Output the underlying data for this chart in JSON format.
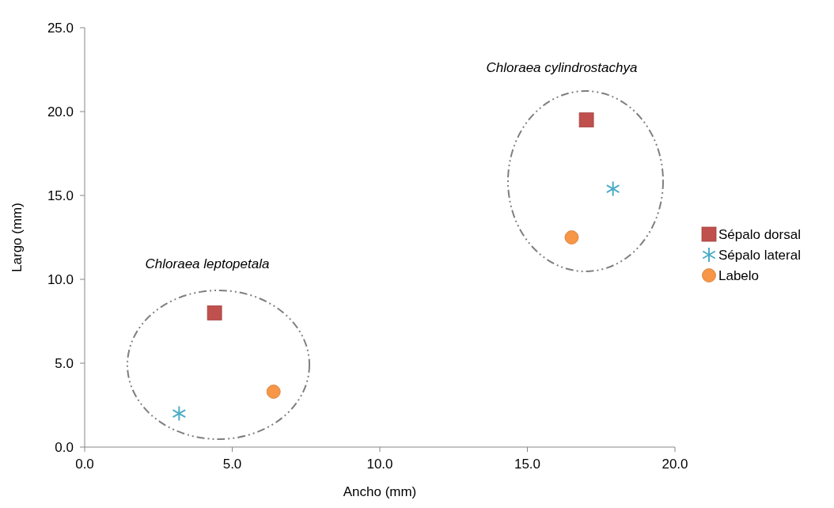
{
  "chart_data": {
    "type": "scatter",
    "xlabel": "Ancho (mm)",
    "ylabel": "Largo (mm)",
    "xlim": [
      0,
      20
    ],
    "ylim": [
      0,
      25
    ],
    "xticks": [
      {
        "value": 0,
        "label": "0.0"
      },
      {
        "value": 5,
        "label": "5.0"
      },
      {
        "value": 10,
        "label": "10.0"
      },
      {
        "value": 15,
        "label": "15.0"
      },
      {
        "value": 20,
        "label": "20.0"
      }
    ],
    "yticks": [
      {
        "value": 0,
        "label": "0.0"
      },
      {
        "value": 5,
        "label": "5.0"
      },
      {
        "value": 10,
        "label": "10.0"
      },
      {
        "value": 15,
        "label": "15.0"
      },
      {
        "value": 20,
        "label": "20.0"
      },
      {
        "value": 25,
        "label": "25.0"
      }
    ],
    "grid": false,
    "legend": "right",
    "annotations": [
      "Chloraea leptopetala",
      "Chloraea cylindrostachya"
    ],
    "series": [
      {
        "name": "Sépalo dorsal",
        "color": "#c0504d",
        "marker": "square",
        "x": [
          4.4,
          17.0
        ],
        "values": [
          8.0,
          19.5
        ]
      },
      {
        "name": "Sépalo lateral",
        "color": "#4bacc6",
        "marker": "cross",
        "x": [
          3.2,
          17.9
        ],
        "values": [
          2.0,
          15.4
        ]
      },
      {
        "name": "Labelo",
        "color": "#f79646",
        "marker": "circle",
        "x": [
          6.4,
          16.5
        ],
        "values": [
          3.3,
          12.5
        ]
      }
    ]
  }
}
